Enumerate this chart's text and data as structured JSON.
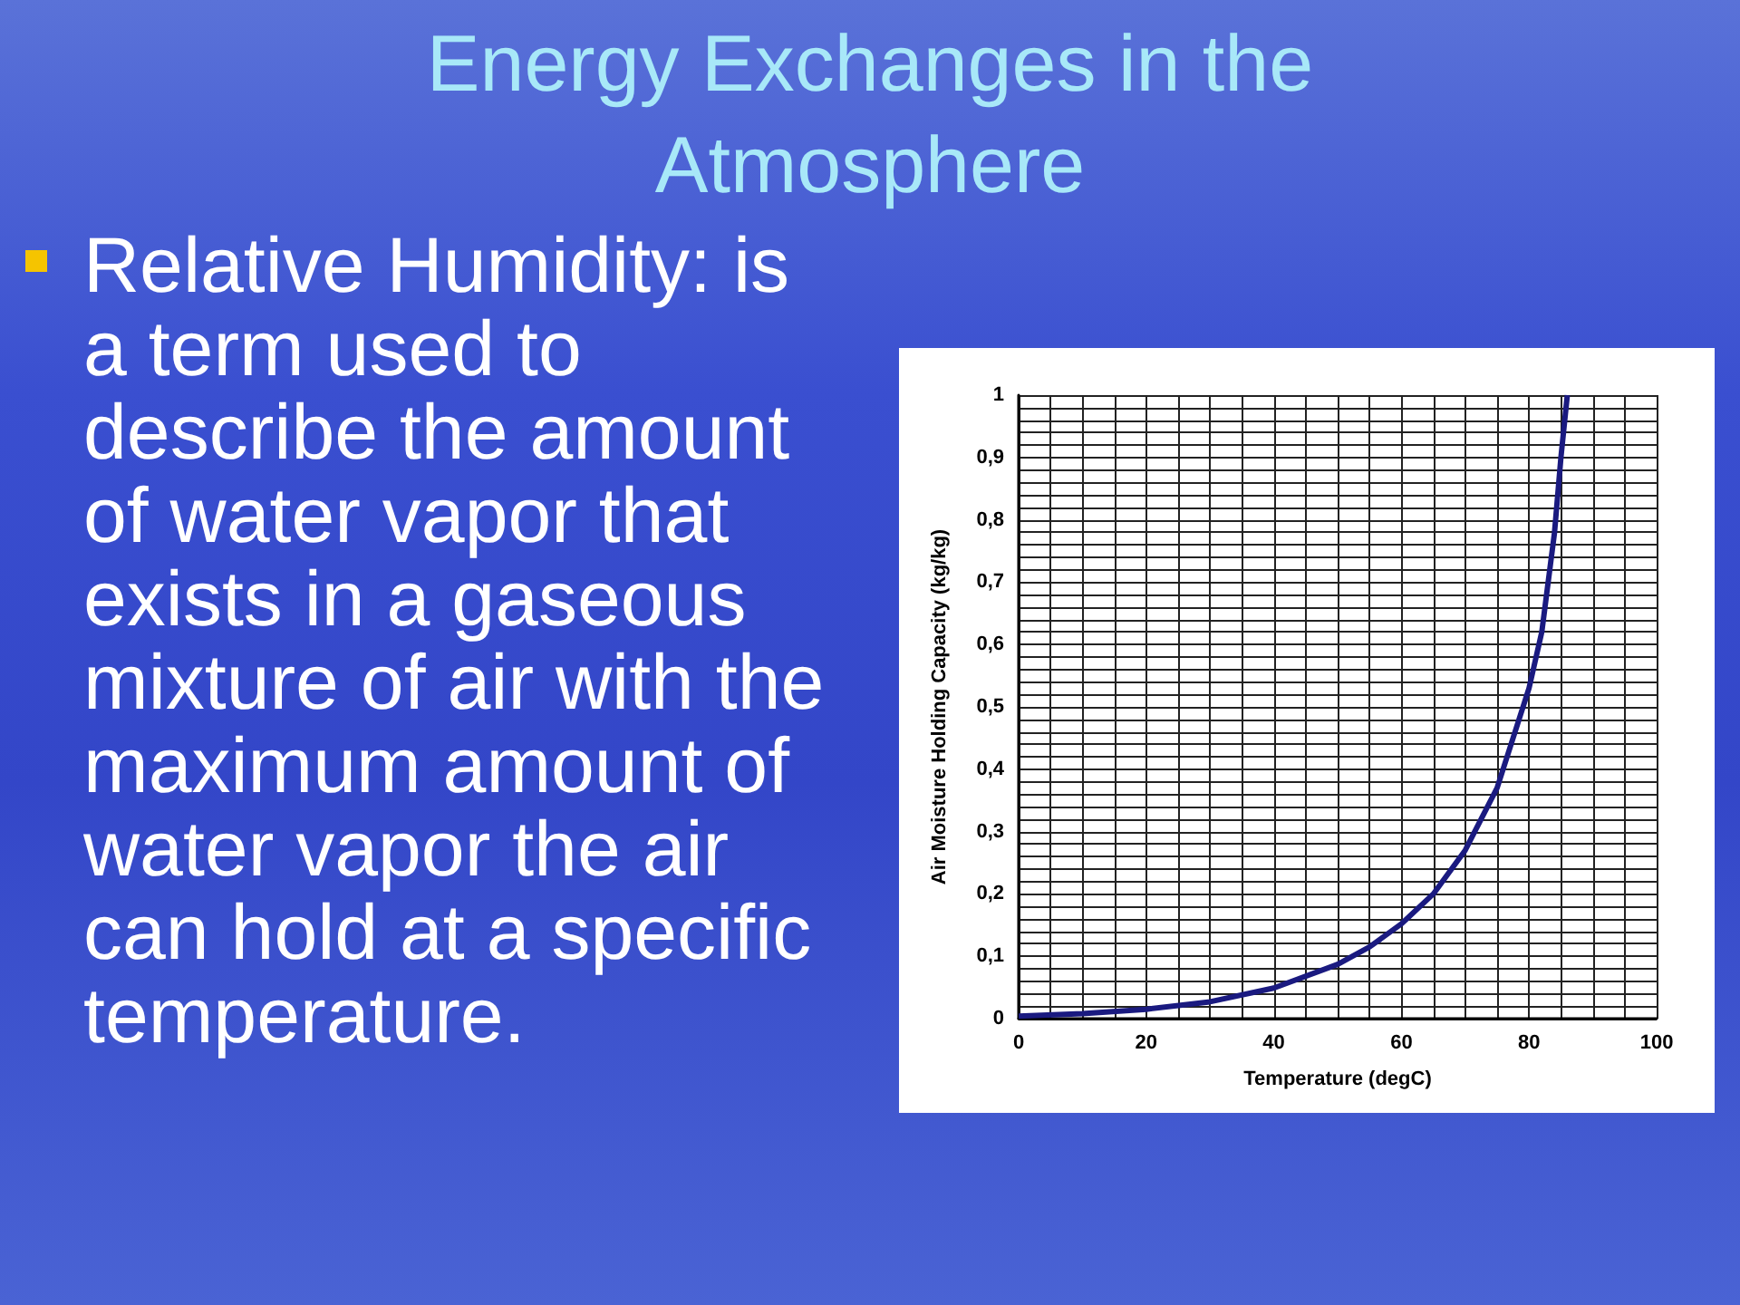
{
  "chart_data": {
    "type": "line",
    "title": "Energy Exchanges in the Atmosphere",
    "annotations": [
      "Relative Humidity: is a term used to describe the amount of water vapor that exists in a gaseous mixture of air with the maximum amount of water vapor the air can hold at a specific temperature."
    ],
    "xlabel": "Temperature (degC)",
    "ylabel": "Air Moisture Holding Capacity (kg/kg)",
    "x": [
      0,
      10,
      20,
      30,
      40,
      50,
      55,
      60,
      65,
      70,
      75,
      80,
      82,
      84,
      85,
      86
    ],
    "series": [
      {
        "color": "#1a1a80",
        "values": [
          0.004,
          0.008,
          0.015,
          0.027,
          0.049,
          0.087,
          0.115,
          0.152,
          0.2,
          0.27,
          0.37,
          0.53,
          0.62,
          0.78,
          0.9,
          1.0
        ]
      }
    ],
    "xlim": [
      0,
      100
    ],
    "xticks": [
      0,
      {
        "value": 5,
        "label": null
      },
      {
        "value": 10,
        "label": null
      },
      {
        "value": 15,
        "label": null
      },
      20,
      {
        "value": 25,
        "label": null
      },
      {
        "value": 30,
        "label": null
      },
      {
        "value": 35,
        "label": null
      },
      40,
      {
        "value": 45,
        "label": null
      },
      {
        "value": 50,
        "label": null
      },
      {
        "value": 55,
        "label": null
      },
      60,
      {
        "value": 65,
        "label": null
      },
      {
        "value": 70,
        "label": null
      },
      {
        "value": 75,
        "label": null
      },
      80,
      {
        "value": 85,
        "label": null
      },
      {
        "value": 90,
        "label": null
      },
      {
        "value": 95,
        "label": null
      },
      100
    ],
    "ylim": [
      0,
      1
    ],
    "yticks": [
      0,
      {
        "value": 0.02,
        "label": null
      },
      {
        "value": 0.04,
        "label": null
      },
      {
        "value": 0.06,
        "label": null
      },
      {
        "value": 0.08,
        "label": null
      },
      {
        "value": 0.1,
        "label": "0,1"
      },
      {
        "value": 0.12,
        "label": null
      },
      {
        "value": 0.14,
        "label": null
      },
      {
        "value": 0.16,
        "label": null
      },
      {
        "value": 0.18,
        "label": null
      },
      {
        "value": 0.2,
        "label": "0,2"
      },
      {
        "value": 0.22,
        "label": null
      },
      {
        "value": 0.24,
        "label": null
      },
      {
        "value": 0.26,
        "label": null
      },
      {
        "value": 0.28,
        "label": null
      },
      {
        "value": 0.3,
        "label": "0,3"
      },
      {
        "value": 0.32,
        "label": null
      },
      {
        "value": 0.34,
        "label": null
      },
      {
        "value": 0.36,
        "label": null
      },
      {
        "value": 0.38,
        "label": null
      },
      {
        "value": 0.4,
        "label": "0,4"
      },
      {
        "value": 0.42,
        "label": null
      },
      {
        "value": 0.44,
        "label": null
      },
      {
        "value": 0.46,
        "label": null
      },
      {
        "value": 0.48,
        "label": null
      },
      {
        "value": 0.5,
        "label": "0,5"
      },
      {
        "value": 0.52,
        "label": null
      },
      {
        "value": 0.54,
        "label": null
      },
      {
        "value": 0.56,
        "label": null
      },
      {
        "value": 0.58,
        "label": null
      },
      {
        "value": 0.6,
        "label": "0,6"
      },
      {
        "value": 0.62,
        "label": null
      },
      {
        "value": 0.64,
        "label": null
      },
      {
        "value": 0.66,
        "label": null
      },
      {
        "value": 0.68,
        "label": null
      },
      {
        "value": 0.7,
        "label": "0,7"
      },
      {
        "value": 0.72,
        "label": null
      },
      {
        "value": 0.74,
        "label": null
      },
      {
        "value": 0.76,
        "label": null
      },
      {
        "value": 0.78,
        "label": null
      },
      {
        "value": 0.8,
        "label": "0,8"
      },
      {
        "value": 0.82,
        "label": null
      },
      {
        "value": 0.84,
        "label": null
      },
      {
        "value": 0.86,
        "label": null
      },
      {
        "value": 0.88,
        "label": null
      },
      {
        "value": 0.9,
        "label": "0,9"
      },
      {
        "value": 0.92,
        "label": null
      },
      {
        "value": 0.94,
        "label": null
      },
      {
        "value": 0.96,
        "label": null
      },
      {
        "value": 0.98,
        "label": null
      },
      1
    ],
    "grid": true,
    "marker": "none",
    "line_style": "solid"
  }
}
